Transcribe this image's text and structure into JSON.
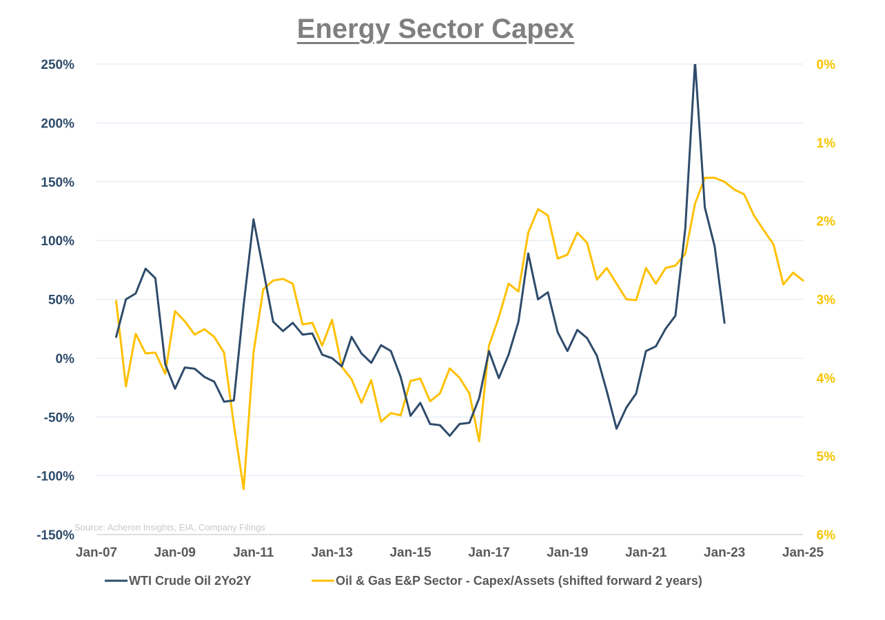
{
  "chart_data": {
    "type": "line",
    "title": "Energy Sector Capex",
    "source": "Source: Acheron Insights, EIA, Company Filings",
    "x_ticks": [
      "Jan-07",
      "Jan-09",
      "Jan-11",
      "Jan-13",
      "Jan-15",
      "Jan-17",
      "Jan-19",
      "Jan-21",
      "Jan-23",
      "Jan-25"
    ],
    "x_range": [
      2007.0,
      2025.0
    ],
    "y_left": {
      "range": [
        -150,
        250
      ],
      "ticks": [
        250,
        200,
        150,
        100,
        50,
        0,
        -50,
        -100,
        -150
      ],
      "tick_labels": [
        "250%",
        "200%",
        "150%",
        "100%",
        "50%",
        "0%",
        "-50%",
        "-100%",
        "-150%"
      ]
    },
    "y_right": {
      "range": [
        0,
        6
      ],
      "inverted": true,
      "ticks": [
        0,
        1,
        2,
        3,
        4,
        5,
        6
      ],
      "tick_labels": [
        "0%",
        "1%",
        "2%",
        "3%",
        "4%",
        "5%",
        "6%"
      ]
    },
    "gridlines": "horizontal",
    "legend_position": "bottom",
    "series": [
      {
        "name": "WTI Crude Oil 2Yo2Y",
        "axis": "left",
        "color": "#2e4b6b",
        "x": [
          2007.5,
          2007.75,
          2008.0,
          2008.25,
          2008.5,
          2008.75,
          2009.0,
          2009.25,
          2009.5,
          2009.75,
          2010.0,
          2010.25,
          2010.5,
          2010.75,
          2011.0,
          2011.25,
          2011.5,
          2011.75,
          2012.0,
          2012.25,
          2012.5,
          2012.75,
          2013.0,
          2013.25,
          2013.5,
          2013.75,
          2014.0,
          2014.25,
          2014.5,
          2014.75,
          2015.0,
          2015.25,
          2015.5,
          2015.75,
          2016.0,
          2016.25,
          2016.5,
          2016.75,
          2017.0,
          2017.25,
          2017.5,
          2017.75,
          2018.0,
          2018.25,
          2018.5,
          2018.75,
          2019.0,
          2019.25,
          2019.5,
          2019.75,
          2020.0,
          2020.25,
          2020.5,
          2020.75,
          2021.0,
          2021.25,
          2021.5,
          2021.75,
          2022.0,
          2022.25,
          2022.5,
          2022.75,
          2023.0
        ],
        "values": [
          18,
          50,
          55,
          76,
          68,
          -5,
          -26,
          -8,
          -9,
          -16,
          -20,
          -37,
          -36,
          45,
          118,
          75,
          31,
          23,
          30,
          20,
          21,
          3,
          0,
          -7,
          18,
          4,
          -4,
          11,
          6,
          -16,
          -49,
          -38,
          -56,
          -57,
          -66,
          -56,
          -55,
          -34,
          6,
          -17,
          3,
          31,
          89,
          50,
          56,
          22,
          6,
          24,
          17,
          2,
          -28,
          -60,
          -42,
          -30,
          6,
          10,
          25,
          36,
          110,
          252,
          128,
          95,
          30
        ]
      },
      {
        "name": "Oil & Gas E&P Sector - Capex/Assets (shifted forward 2 years)",
        "axis": "right",
        "color": "#ffc000",
        "x": [
          2007.5,
          2007.75,
          2008.0,
          2008.25,
          2008.5,
          2008.75,
          2009.0,
          2009.25,
          2009.5,
          2009.75,
          2010.0,
          2010.25,
          2010.5,
          2010.75,
          2011.0,
          2011.25,
          2011.5,
          2011.75,
          2012.0,
          2012.25,
          2012.5,
          2012.75,
          2013.0,
          2013.25,
          2013.5,
          2013.75,
          2014.0,
          2014.25,
          2014.5,
          2014.75,
          2015.0,
          2015.25,
          2015.5,
          2015.75,
          2016.0,
          2016.25,
          2016.5,
          2016.75,
          2017.0,
          2017.25,
          2017.5,
          2017.75,
          2018.0,
          2018.25,
          2018.5,
          2018.75,
          2019.0,
          2019.25,
          2019.5,
          2019.75,
          2020.0,
          2020.25,
          2020.5,
          2020.75,
          2021.0,
          2021.25,
          2021.5,
          2021.75,
          2022.0,
          2022.25,
          2022.5,
          2022.75,
          2023.0,
          2023.25,
          2023.5,
          2023.75,
          2024.0,
          2024.25,
          2024.5,
          2024.75,
          2025.0
        ],
        "values": [
          3.02,
          4.11,
          3.44,
          3.69,
          3.68,
          3.95,
          3.15,
          3.28,
          3.45,
          3.38,
          3.48,
          3.68,
          4.6,
          5.42,
          3.68,
          2.87,
          2.76,
          2.74,
          2.8,
          3.32,
          3.3,
          3.59,
          3.26,
          3.86,
          4.02,
          4.32,
          4.03,
          4.56,
          4.45,
          4.48,
          4.04,
          4.01,
          4.3,
          4.2,
          3.88,
          4.0,
          4.2,
          4.81,
          3.59,
          3.23,
          2.8,
          2.9,
          2.15,
          1.85,
          1.93,
          2.48,
          2.43,
          2.15,
          2.28,
          2.75,
          2.6,
          2.8,
          3.0,
          3.01,
          2.6,
          2.8,
          2.6,
          2.57,
          2.42,
          1.78,
          1.45,
          1.45,
          1.5,
          1.6,
          1.66,
          1.93,
          2.12,
          2.3,
          2.81,
          2.66,
          2.76
        ]
      }
    ]
  }
}
